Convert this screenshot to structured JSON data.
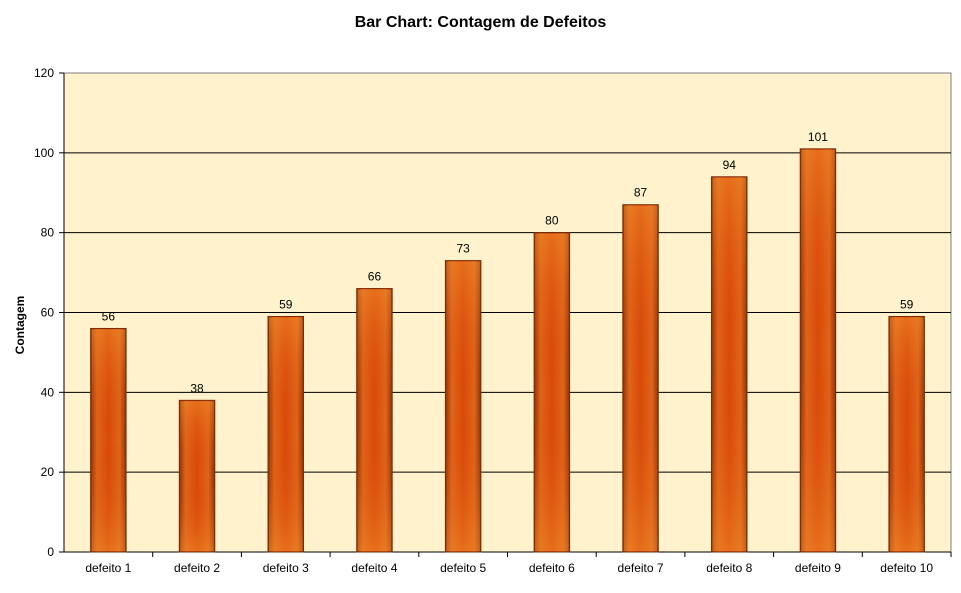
{
  "chart_data": {
    "type": "bar",
    "title": "Bar Chart: Contagem de Defeitos",
    "xlabel": "",
    "ylabel": "Contagem",
    "categories": [
      "defeito 1",
      "defeito 2",
      "defeito 3",
      "defeito 4",
      "defeito 5",
      "defeito 6",
      "defeito 7",
      "defeito 8",
      "defeito 9",
      "defeito 10"
    ],
    "values": [
      56,
      38,
      59,
      66,
      73,
      80,
      87,
      94,
      101,
      59
    ],
    "ylim": [
      0,
      120
    ],
    "yticks": [
      0,
      20,
      40,
      60,
      80,
      100,
      120
    ],
    "grid": true,
    "data_labels": true,
    "colors": {
      "plot_background": "#FFF2CC",
      "bar_edge": "#E6701E",
      "bar_center": "#D43C06",
      "bar_outline": "#7A2A06",
      "gridline": "#000000"
    }
  }
}
